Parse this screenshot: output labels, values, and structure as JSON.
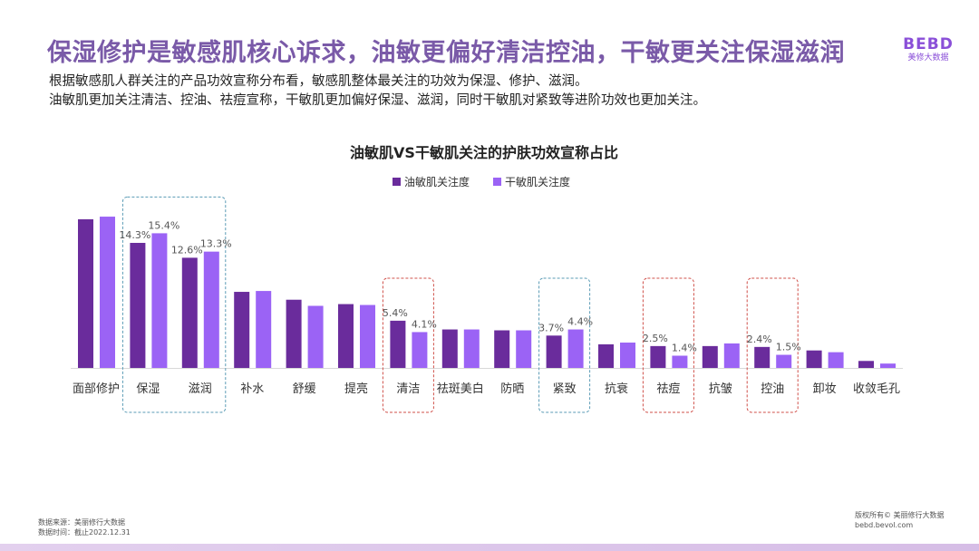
{
  "header": {
    "title": "保湿修护是敏感肌核心诉求，油敏更偏好清洁控油，干敏更关注保湿滋润",
    "subtitle_lines": [
      "根据敏感肌人群关注的产品功效宣称分布看，敏感肌整体最关注的功效为保湿、修护、滋润。",
      "油敏肌更加关注清洁、控油、祛痘宣称，干敏肌更加偏好保湿、滋润，同时干敏肌对紧致等进阶功效也更加关注。"
    ],
    "logo_mark": "BEBD",
    "logo_name": "美修大数据"
  },
  "chart_data": {
    "type": "bar",
    "title": "油敏肌VS干敏肌关注的护肤功效宣称占比",
    "legend_position": "top",
    "grid": false,
    "ylim": [
      0,
      18
    ],
    "categories": [
      "面部修护",
      "保湿",
      "滋润",
      "补水",
      "舒缓",
      "提亮",
      "清洁",
      "祛斑美白",
      "防晒",
      "紧致",
      "抗衰",
      "祛痘",
      "抗皱",
      "控油",
      "卸妆",
      "收敛毛孔"
    ],
    "series": [
      {
        "name": "油敏肌关注度",
        "color": "#6a2c9c",
        "values": [
          17.0,
          14.3,
          12.6,
          8.7,
          7.8,
          7.3,
          5.4,
          4.4,
          4.3,
          3.7,
          2.7,
          2.5,
          2.5,
          2.4,
          2.0,
          0.8
        ]
      },
      {
        "name": "干敏肌关注度",
        "color": "#9b63f5",
        "values": [
          17.3,
          15.4,
          13.3,
          8.8,
          7.1,
          7.2,
          4.1,
          4.4,
          4.3,
          4.4,
          2.9,
          1.4,
          2.8,
          1.5,
          1.8,
          0.5
        ]
      }
    ],
    "data_labels": {
      "保湿": [
        "14.3%",
        "15.4%"
      ],
      "滋润": [
        "12.6%",
        "13.3%"
      ],
      "清洁": [
        "5.4%",
        "4.1%"
      ],
      "紧致": [
        "3.7%",
        "4.4%"
      ],
      "祛痘": [
        "2.5%",
        "1.4%"
      ],
      "控油": [
        "2.4%",
        "1.5%"
      ]
    },
    "highlights": [
      {
        "categories": [
          "保湿",
          "滋润"
        ],
        "color": "#5a9bb5"
      },
      {
        "categories": [
          "清洁"
        ],
        "color": "#d0504a"
      },
      {
        "categories": [
          "紧致"
        ],
        "color": "#5a9bb5"
      },
      {
        "categories": [
          "祛痘"
        ],
        "color": "#d0504a"
      },
      {
        "categories": [
          "控油"
        ],
        "color": "#d0504a"
      }
    ]
  },
  "footer": {
    "source": "数据来源：美丽修行大数据",
    "date": "数据时间：截止2022.12.31",
    "copyright": "版权所有© 美丽修行大数据",
    "url": "bebd.bevol.com"
  }
}
